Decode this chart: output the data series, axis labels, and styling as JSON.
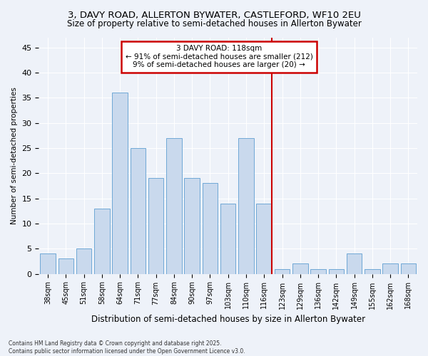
{
  "title1": "3, DAVY ROAD, ALLERTON BYWATER, CASTLEFORD, WF10 2EU",
  "title2": "Size of property relative to semi-detached houses in Allerton Bywater",
  "xlabel": "Distribution of semi-detached houses by size in Allerton Bywater",
  "ylabel": "Number of semi-detached properties",
  "categories": [
    "38sqm",
    "45sqm",
    "51sqm",
    "58sqm",
    "64sqm",
    "71sqm",
    "77sqm",
    "84sqm",
    "90sqm",
    "97sqm",
    "103sqm",
    "110sqm",
    "116sqm",
    "123sqm",
    "129sqm",
    "136sqm",
    "142sqm",
    "149sqm",
    "155sqm",
    "162sqm",
    "168sqm"
  ],
  "values": [
    4,
    3,
    5,
    13,
    36,
    25,
    19,
    27,
    19,
    18,
    14,
    27,
    14,
    1,
    2,
    1,
    1,
    4,
    1,
    2,
    2
  ],
  "bar_color": "#c9d9ed",
  "bar_edge_color": "#6fa8d6",
  "highlight_idx": 12,
  "highlight_label": "3 DAVY ROAD: 118sqm",
  "annotation_line1": "← 91% of semi-detached houses are smaller (212)",
  "annotation_line2": "9% of semi-detached houses are larger (20) →",
  "vline_color": "#cc0000",
  "annotation_box_edge": "#cc0000",
  "annotation_box_face": "white",
  "footer1": "Contains HM Land Registry data © Crown copyright and database right 2025.",
  "footer2": "Contains public sector information licensed under the Open Government Licence v3.0.",
  "ylim": [
    0,
    47
  ],
  "background_color": "#eef2f9",
  "grid_color": "#ffffff",
  "title1_fontsize": 9.5,
  "title2_fontsize": 8.5,
  "xlabel_fontsize": 8.5,
  "ylabel_fontsize": 7.5,
  "tick_fontsize": 7,
  "annotation_fontsize": 7.5,
  "footer_fontsize": 5.5
}
